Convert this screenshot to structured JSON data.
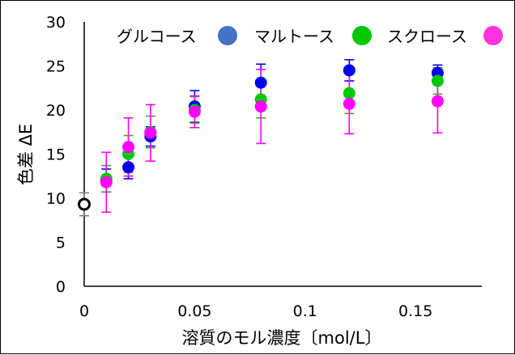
{
  "chart_data": {
    "type": "scatter",
    "title": "",
    "xlabel": "溶質のモル濃度〔mol/L〕",
    "ylabel": "色差 ΔE",
    "xlim": [
      0,
      0.18
    ],
    "ylim": [
      0,
      30
    ],
    "x_ticks": [
      0,
      0.05,
      0.1,
      0.15
    ],
    "x_tick_labels": [
      "0",
      "0.05",
      "0.1",
      "0.15"
    ],
    "y_ticks": [
      0,
      5,
      10,
      15,
      20,
      25,
      30
    ],
    "y_tick_labels": [
      "0",
      "5",
      "10",
      "15",
      "20",
      "25",
      "30"
    ],
    "grid": false,
    "legend_position": "top",
    "series": [
      {
        "name": "グルコース",
        "legend_color": "#4472c4",
        "marker_color": "#0000ee",
        "error_color": "#0000ee",
        "points": [
          {
            "x": 0.01,
            "y": 12.0,
            "err": 1.3
          },
          {
            "x": 0.02,
            "y": 13.5,
            "err": 1.3
          },
          {
            "x": 0.03,
            "y": 17.0,
            "err": 1.1
          },
          {
            "x": 0.05,
            "y": 20.4,
            "err": 1.8
          },
          {
            "x": 0.08,
            "y": 23.1,
            "err": 2.1
          },
          {
            "x": 0.12,
            "y": 24.5,
            "err": 1.2
          },
          {
            "x": 0.16,
            "y": 24.2,
            "err": 0.9
          }
        ]
      },
      {
        "name": "マルトース",
        "legend_color": "#00c800",
        "marker_color": "#00c800",
        "error_color": "#55a030",
        "points": [
          {
            "x": 0.01,
            "y": 12.2,
            "err": 1.5
          },
          {
            "x": 0.02,
            "y": 15.0,
            "err": 2.1
          },
          {
            "x": 0.03,
            "y": 17.5,
            "err": 1.8
          },
          {
            "x": 0.05,
            "y": 20.0,
            "err": 1.5
          },
          {
            "x": 0.08,
            "y": 21.2,
            "err": 2.1
          },
          {
            "x": 0.12,
            "y": 21.9,
            "err": 2.3
          },
          {
            "x": 0.16,
            "y": 23.3,
            "err": 1.5
          }
        ]
      },
      {
        "name": "スクロース",
        "legend_color": "#ff33dd",
        "marker_color": "#ff00ff",
        "error_color": "#ff00ff",
        "points": [
          {
            "x": 0.01,
            "y": 11.8,
            "err": 3.4
          },
          {
            "x": 0.02,
            "y": 15.8,
            "err": 3.3
          },
          {
            "x": 0.03,
            "y": 17.4,
            "err": 3.2
          },
          {
            "x": 0.05,
            "y": 19.8,
            "err": 1.8
          },
          {
            "x": 0.08,
            "y": 20.4,
            "err": 4.2
          },
          {
            "x": 0.12,
            "y": 20.7,
            "err": 3.4
          },
          {
            "x": 0.16,
            "y": 21.0,
            "err": 3.6
          }
        ]
      }
    ],
    "reference_point": {
      "x": 0,
      "y": 9.3,
      "err": 1.3,
      "marker": "open-circle",
      "marker_color": "#000000",
      "error_color": "#808080"
    }
  }
}
